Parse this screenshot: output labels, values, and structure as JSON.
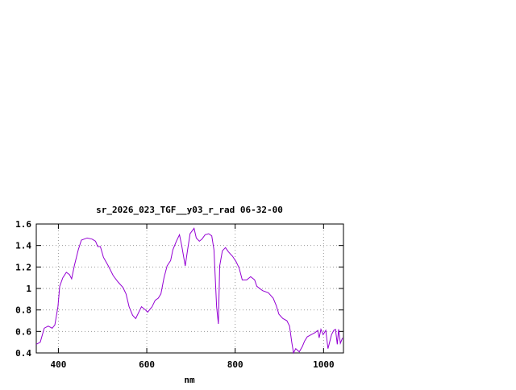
{
  "chart_data": {
    "type": "line",
    "title": "sr_2026_023_TGF__y03_r_rad 06-32-00",
    "x_label": "nm",
    "x": [
      350,
      359,
      368,
      377,
      386,
      392,
      399,
      403,
      410,
      418,
      425,
      430,
      436,
      445,
      452,
      465,
      476,
      484,
      489,
      495,
      502,
      513,
      524,
      535,
      546,
      553,
      560,
      568,
      575,
      582,
      588,
      597,
      602,
      612,
      619,
      626,
      632,
      639,
      646,
      654,
      659,
      667,
      674,
      679,
      687,
      692,
      698,
      707,
      712,
      719,
      725,
      732,
      740,
      747,
      752,
      758,
      762,
      765,
      771,
      778,
      785,
      794,
      802,
      809,
      816,
      826,
      835,
      844,
      849,
      862,
      875,
      886,
      893,
      899,
      908,
      917,
      923,
      928,
      932,
      937,
      945,
      952,
      957,
      963,
      972,
      981,
      987,
      990,
      994,
      999,
      1005,
      1010,
      1018,
      1023,
      1027,
      1031,
      1034,
      1038,
      1043
    ],
    "series": [
      {
        "color": "#9400d3",
        "values": [
          0.48,
          0.5,
          0.63,
          0.65,
          0.63,
          0.66,
          0.83,
          1.02,
          1.1,
          1.15,
          1.13,
          1.09,
          1.21,
          1.36,
          1.45,
          1.47,
          1.46,
          1.44,
          1.39,
          1.39,
          1.29,
          1.21,
          1.12,
          1.06,
          1.01,
          0.95,
          0.83,
          0.75,
          0.72,
          0.78,
          0.83,
          0.8,
          0.78,
          0.83,
          0.89,
          0.91,
          0.95,
          1.1,
          1.21,
          1.26,
          1.36,
          1.44,
          1.5,
          1.4,
          1.21,
          1.35,
          1.51,
          1.56,
          1.47,
          1.44,
          1.46,
          1.5,
          1.51,
          1.49,
          1.36,
          0.83,
          0.67,
          1.21,
          1.35,
          1.38,
          1.34,
          1.3,
          1.25,
          1.19,
          1.08,
          1.08,
          1.11,
          1.08,
          1.02,
          0.98,
          0.96,
          0.91,
          0.84,
          0.76,
          0.72,
          0.7,
          0.65,
          0.5,
          0.4,
          0.44,
          0.41,
          0.46,
          0.51,
          0.55,
          0.57,
          0.59,
          0.61,
          0.54,
          0.62,
          0.57,
          0.61,
          0.44,
          0.57,
          0.61,
          0.62,
          0.48,
          0.62,
          0.49,
          0.54
        ]
      }
    ],
    "xlim": [
      350,
      1045
    ],
    "xticks": [
      400,
      600,
      800,
      1000
    ],
    "ylim": [
      0.4,
      1.6
    ],
    "yticks": [
      0.4,
      0.6,
      0.8,
      1,
      1.2,
      1.4,
      1.6
    ],
    "grid": true
  }
}
